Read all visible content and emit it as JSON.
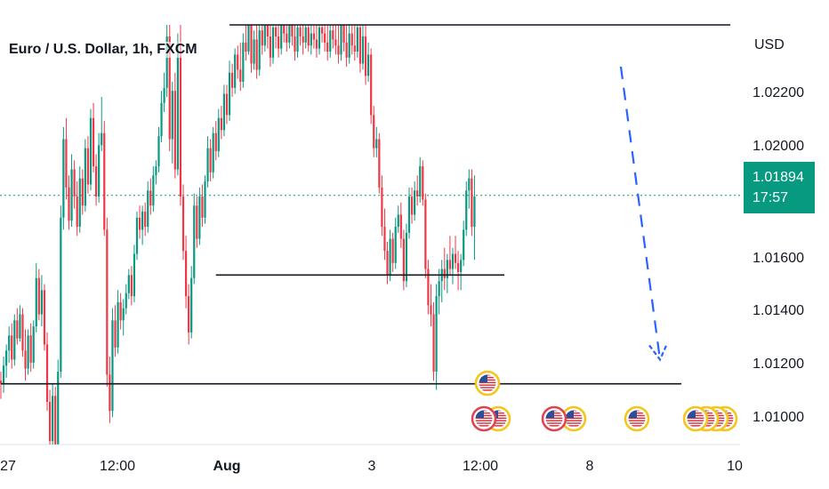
{
  "header": {
    "title": "Euro / U.S. Dollar, 1h, FXCM"
  },
  "price_axis": {
    "currency": "USD",
    "labels": [
      "1.02200",
      "1.02000",
      "1.01600",
      "1.01400",
      "1.01200",
      "1.01000"
    ],
    "last_price": "1.01894",
    "countdown": "17:57"
  },
  "time_axis": {
    "labels": [
      "27",
      "12:00",
      "Aug",
      "3",
      "12:00",
      "8",
      "10"
    ]
  },
  "colors": {
    "up": "#089981",
    "down": "#f23645",
    "line": "#131722",
    "arrow": "#2962ff",
    "event_ring": "#f5c518",
    "event_ring_red": "#e0434f"
  },
  "chart_data": {
    "type": "candlestick",
    "symbol": "Euro / U.S. Dollar",
    "timeframe": "1h",
    "source": "FXCM",
    "y_unit": "USD",
    "ylim": [
      1.0092,
      1.0248
    ],
    "y_ticks": [
      1.022,
      1.02,
      1.016,
      1.014,
      1.012,
      1.01
    ],
    "last_price": 1.01894,
    "horizontal_levels": [
      {
        "price": 1.0246,
        "from_index": 84,
        "to_index": 268
      },
      {
        "price": 1.0163,
        "from_index": 79,
        "to_index": 185
      },
      {
        "price": 1.0127,
        "from_index": 0,
        "to_index": 250
      }
    ],
    "projection_arrow": {
      "direction": "down",
      "from_price": 1.0232,
      "to_price": 1.0135
    },
    "candles": [
      [
        1.0128,
        1.0131,
        1.0122,
        1.0127
      ],
      [
        1.0127,
        1.0136,
        1.0124,
        1.0133
      ],
      [
        1.0133,
        1.014,
        1.0129,
        1.0138
      ],
      [
        1.0138,
        1.0146,
        1.0134,
        1.0143
      ],
      [
        1.0143,
        1.0147,
        1.0132,
        1.0135
      ],
      [
        1.0135,
        1.015,
        1.0133,
        1.0148
      ],
      [
        1.0148,
        1.0152,
        1.014,
        1.0142
      ],
      [
        1.0142,
        1.0153,
        1.0141,
        1.015
      ],
      [
        1.015,
        1.0152,
        1.0136,
        1.0138
      ],
      [
        1.0138,
        1.0145,
        1.0128,
        1.0132
      ],
      [
        1.0132,
        1.0145,
        1.013,
        1.0143
      ],
      [
        1.0143,
        1.0147,
        1.0131,
        1.0134
      ],
      [
        1.0134,
        1.0148,
        1.0132,
        1.0146
      ],
      [
        1.0146,
        1.0167,
        1.0144,
        1.0162
      ],
      [
        1.0162,
        1.0165,
        1.0148,
        1.015
      ],
      [
        1.015,
        1.0163,
        1.0146,
        1.0158
      ],
      [
        1.0158,
        1.016,
        1.0138,
        1.014
      ],
      [
        1.014,
        1.0144,
        1.0118,
        1.0121
      ],
      [
        1.0121,
        1.0125,
        1.0104,
        1.0108
      ],
      [
        1.0108,
        1.0127,
        1.0098,
        1.0123
      ],
      [
        1.0123,
        1.0126,
        1.0104,
        1.0107
      ],
      [
        1.0107,
        1.0135,
        1.0105,
        1.0131
      ],
      [
        1.0131,
        1.0186,
        1.0129,
        1.0182
      ],
      [
        1.0182,
        1.0212,
        1.0178,
        1.0208
      ],
      [
        1.0208,
        1.0215,
        1.0188,
        1.0192
      ],
      [
        1.0192,
        1.0196,
        1.0178,
        1.0181
      ],
      [
        1.0181,
        1.0203,
        1.0179,
        1.0198
      ],
      [
        1.0198,
        1.0201,
        1.0185,
        1.0189
      ],
      [
        1.0189,
        1.0194,
        1.0176,
        1.0179
      ],
      [
        1.0179,
        1.0199,
        1.0177,
        1.0195
      ],
      [
        1.0195,
        1.0198,
        1.0183,
        1.0186
      ],
      [
        1.0186,
        1.0208,
        1.0184,
        1.0205
      ],
      [
        1.0205,
        1.0209,
        1.019,
        1.0193
      ],
      [
        1.0193,
        1.0218,
        1.0191,
        1.0215
      ],
      [
        1.0215,
        1.022,
        1.0197,
        1.0199
      ],
      [
        1.0199,
        1.0203,
        1.0186,
        1.0189
      ],
      [
        1.0189,
        1.021,
        1.0187,
        1.0206
      ],
      [
        1.0206,
        1.0222,
        1.0204,
        1.021
      ],
      [
        1.021,
        1.0214,
        1.0176,
        1.0178
      ],
      [
        1.0178,
        1.0182,
        1.0126,
        1.013
      ],
      [
        1.013,
        1.0136,
        1.0114,
        1.0118
      ],
      [
        1.0118,
        1.0152,
        1.0116,
        1.0148
      ],
      [
        1.0148,
        1.0153,
        1.0136,
        1.0139
      ],
      [
        1.0139,
        1.0158,
        1.0137,
        1.0154
      ],
      [
        1.0154,
        1.0157,
        1.0145,
        1.0148
      ],
      [
        1.0148,
        1.0155,
        1.0143,
        1.0152
      ],
      [
        1.0152,
        1.016,
        1.015,
        1.0157
      ],
      [
        1.0157,
        1.0165,
        1.0155,
        1.0163
      ],
      [
        1.0163,
        1.0166,
        1.0153,
        1.0156
      ],
      [
        1.0156,
        1.0173,
        1.0154,
        1.017
      ],
      [
        1.017,
        1.0184,
        1.0168,
        1.0182
      ],
      [
        1.0182,
        1.0186,
        1.0175,
        1.0178
      ],
      [
        1.0178,
        1.0186,
        1.0173,
        1.0184
      ],
      [
        1.0184,
        1.0187,
        1.0176,
        1.0179
      ],
      [
        1.0179,
        1.0194,
        1.0177,
        1.0191
      ],
      [
        1.0191,
        1.0195,
        1.0183,
        1.0186
      ],
      [
        1.0186,
        1.0199,
        1.0184,
        1.0196
      ],
      [
        1.0196,
        1.0201,
        1.0193,
        1.0199
      ],
      [
        1.0199,
        1.0212,
        1.0197,
        1.0209
      ],
      [
        1.0209,
        1.0224,
        1.0207,
        1.022
      ],
      [
        1.022,
        1.023,
        1.0217,
        1.0225
      ],
      [
        1.0225,
        1.0246,
        1.0222,
        1.0242
      ],
      [
        1.0242,
        1.0248,
        1.0204,
        1.0208
      ],
      [
        1.0208,
        1.0227,
        1.02,
        1.0224
      ],
      [
        1.0224,
        1.023,
        1.0195,
        1.0198
      ],
      [
        1.0198,
        1.0243,
        1.0196,
        1.024
      ],
      [
        1.024,
        1.0246,
        1.0186,
        1.0189
      ],
      [
        1.0189,
        1.0193,
        1.0168,
        1.0171
      ],
      [
        1.0171,
        1.0176,
        1.0152,
        1.0156
      ],
      [
        1.0156,
        1.016,
        1.014,
        1.0144
      ],
      [
        1.0144,
        1.0166,
        1.0142,
        1.0162
      ],
      [
        1.0162,
        1.019,
        1.016,
        1.0186
      ],
      [
        1.0186,
        1.0189,
        1.0172,
        1.0175
      ],
      [
        1.0175,
        1.0192,
        1.0173,
        1.0189
      ],
      [
        1.0189,
        1.0193,
        1.0179,
        1.0182
      ],
      [
        1.0182,
        1.0196,
        1.018,
        1.0194
      ],
      [
        1.0194,
        1.0209,
        1.0192,
        1.0205
      ],
      [
        1.0205,
        1.0208,
        1.0194,
        1.0197
      ],
      [
        1.0197,
        1.0212,
        1.0195,
        1.021
      ],
      [
        1.021,
        1.0214,
        1.0201,
        1.0204
      ],
      [
        1.0204,
        1.0218,
        1.0202,
        1.0215
      ],
      [
        1.0215,
        1.0219,
        1.0208,
        1.0211
      ],
      [
        1.0211,
        1.0226,
        1.0209,
        1.0223
      ],
      [
        1.0223,
        1.0226,
        1.0213,
        1.0216
      ],
      [
        1.0216,
        1.0234,
        1.0214,
        1.023
      ],
      [
        1.023,
        1.0233,
        1.0222,
        1.0225
      ],
      [
        1.0225,
        1.0238,
        1.0223,
        1.0236
      ],
      [
        1.0236,
        1.0239,
        1.0228,
        1.0231
      ],
      [
        1.0231,
        1.024,
        1.0224,
        1.0227
      ],
      [
        1.0227,
        1.0243,
        1.0225,
        1.024
      ],
      [
        1.024,
        1.0248,
        1.0234,
        1.0237
      ],
      [
        1.0237,
        1.0248,
        1.0236,
        1.0246
      ],
      [
        1.0246,
        1.0248,
        1.023,
        1.0233
      ],
      [
        1.0233,
        1.0244,
        1.0231,
        1.0241
      ],
      [
        1.0241,
        1.0248,
        1.0228,
        1.0231
      ],
      [
        1.0231,
        1.0246,
        1.0229,
        1.0244
      ],
      [
        1.0244,
        1.0248,
        1.0236,
        1.0239
      ],
      [
        1.0239,
        1.0248,
        1.0237,
        1.0246
      ],
      [
        1.0246,
        1.0248,
        1.0238,
        1.0242
      ],
      [
        1.0242,
        1.0248,
        1.0232,
        1.0235
      ],
      [
        1.0235,
        1.0248,
        1.0233,
        1.0245
      ],
      [
        1.0245,
        1.0248,
        1.0238,
        1.0242
      ],
      [
        1.0242,
        1.0248,
        1.0235,
        1.0238
      ],
      [
        1.0238,
        1.0248,
        1.0236,
        1.0246
      ],
      [
        1.0246,
        1.0248,
        1.024,
        1.0243
      ],
      [
        1.0243,
        1.0248,
        1.0237,
        1.024
      ],
      [
        1.024,
        1.0248,
        1.0238,
        1.0246
      ],
      [
        1.0246,
        1.0248,
        1.0239,
        1.0242
      ],
      [
        1.0242,
        1.0248,
        1.0234,
        1.0237
      ],
      [
        1.0237,
        1.0248,
        1.0235,
        1.0245
      ],
      [
        1.0245,
        1.0248,
        1.0239,
        1.0242
      ],
      [
        1.0242,
        1.0248,
        1.0236,
        1.024
      ],
      [
        1.024,
        1.0248,
        1.0238,
        1.0245
      ],
      [
        1.0245,
        1.0248,
        1.0237,
        1.0239
      ],
      [
        1.0239,
        1.0248,
        1.0236,
        1.0243
      ],
      [
        1.0243,
        1.0248,
        1.0238,
        1.0241
      ],
      [
        1.0241,
        1.0248,
        1.0235,
        1.0238
      ],
      [
        1.0238,
        1.0248,
        1.0236,
        1.0245
      ],
      [
        1.0245,
        1.0248,
        1.024,
        1.0243
      ],
      [
        1.0243,
        1.0248,
        1.0237,
        1.024
      ],
      [
        1.024,
        1.0248,
        1.0234,
        1.0237
      ],
      [
        1.0237,
        1.0248,
        1.0235,
        1.0244
      ],
      [
        1.0244,
        1.0248,
        1.0238,
        1.0241
      ],
      [
        1.0241,
        1.0248,
        1.0236,
        1.0239
      ],
      [
        1.0239,
        1.0248,
        1.0233,
        1.0236
      ],
      [
        1.0236,
        1.0248,
        1.0234,
        1.0246
      ],
      [
        1.0246,
        1.0248,
        1.0237,
        1.024
      ],
      [
        1.024,
        1.0248,
        1.0232,
        1.0235
      ],
      [
        1.0235,
        1.0248,
        1.0233,
        1.0243
      ],
      [
        1.0243,
        1.0248,
        1.0236,
        1.0239
      ],
      [
        1.0239,
        1.0248,
        1.0234,
        1.0237
      ],
      [
        1.0237,
        1.0248,
        1.0235,
        1.0245
      ],
      [
        1.0245,
        1.0248,
        1.023,
        1.0233
      ],
      [
        1.0233,
        1.0246,
        1.0231,
        1.0242
      ],
      [
        1.0242,
        1.0248,
        1.0226,
        1.0229
      ],
      [
        1.0229,
        1.024,
        1.0227,
        1.0236
      ],
      [
        1.0236,
        1.0238,
        1.0213,
        1.0216
      ],
      [
        1.0216,
        1.0219,
        1.0202,
        1.0205
      ],
      [
        1.0205,
        1.0212,
        1.0202,
        1.0208
      ],
      [
        1.0208,
        1.021,
        1.019,
        1.0192
      ],
      [
        1.0192,
        1.0196,
        1.0176,
        1.0179
      ],
      [
        1.0179,
        1.0185,
        1.0168,
        1.0171
      ],
      [
        1.0171,
        1.0174,
        1.016,
        1.0163
      ],
      [
        1.0163,
        1.0178,
        1.0161,
        1.0175
      ],
      [
        1.0175,
        1.0177,
        1.0164,
        1.0167
      ],
      [
        1.0167,
        1.0182,
        1.0165,
        1.0179
      ],
      [
        1.0179,
        1.0186,
        1.0177,
        1.0183
      ],
      [
        1.0183,
        1.0187,
        1.0172,
        1.0175
      ],
      [
        1.0175,
        1.0178,
        1.0158,
        1.0161
      ],
      [
        1.0161,
        1.018,
        1.0159,
        1.0177
      ],
      [
        1.0177,
        1.0192,
        1.0175,
        1.0189
      ],
      [
        1.0189,
        1.0192,
        1.018,
        1.0183
      ],
      [
        1.0183,
        1.0194,
        1.0181,
        1.0191
      ],
      [
        1.0191,
        1.0196,
        1.0186,
        1.0189
      ],
      [
        1.0189,
        1.0202,
        1.0187,
        1.0199
      ],
      [
        1.0199,
        1.0201,
        1.0186,
        1.0188
      ],
      [
        1.0188,
        1.019,
        1.0162,
        1.0165
      ],
      [
        1.0165,
        1.0168,
        1.015,
        1.0153
      ],
      [
        1.0153,
        1.016,
        1.0146,
        1.015
      ],
      [
        1.015,
        1.0154,
        1.0128,
        1.0131
      ],
      [
        1.0131,
        1.016,
        1.0125,
        1.0156
      ],
      [
        1.0156,
        1.0165,
        1.015,
        1.0161
      ],
      [
        1.0161,
        1.0168,
        1.0154,
        1.0165
      ],
      [
        1.0165,
        1.0172,
        1.0158,
        1.0162
      ],
      [
        1.0162,
        1.017,
        1.0157,
        1.0168
      ],
      [
        1.0168,
        1.0176,
        1.0163,
        1.0165
      ],
      [
        1.0165,
        1.0172,
        1.016,
        1.017
      ],
      [
        1.017,
        1.0176,
        1.0165,
        1.0167
      ],
      [
        1.0167,
        1.0171,
        1.0158,
        1.0164
      ],
      [
        1.0164,
        1.017,
        1.0158,
        1.0168
      ],
      [
        1.0168,
        1.0181,
        1.0166,
        1.0178
      ],
      [
        1.0178,
        1.0194,
        1.0176,
        1.0191
      ],
      [
        1.0191,
        1.0198,
        1.0185,
        1.0195
      ],
      [
        1.0195,
        1.0198,
        1.0176,
        1.0179
      ],
      [
        1.0179,
        1.0196,
        1.0168,
        1.0189
      ]
    ],
    "event_markers": [
      {
        "type": "US economic calendar event",
        "count": 2
      },
      {
        "type": "US economic calendar event",
        "count": 2
      },
      {
        "type": "US economic calendar event",
        "count": 1
      },
      {
        "type": "US economic calendar event",
        "count": 4
      }
    ]
  }
}
